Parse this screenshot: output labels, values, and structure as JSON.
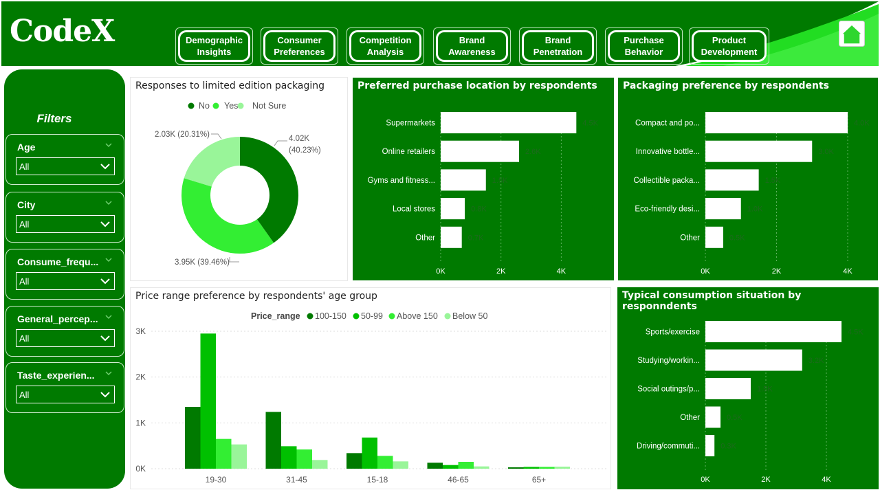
{
  "app": {
    "logo": "CodeX"
  },
  "nav": {
    "buttons": [
      {
        "line1": "Demographic",
        "line2": "Insights"
      },
      {
        "line1": "Consumer",
        "line2": "Preferences"
      },
      {
        "line1": "Competition",
        "line2": "Analysis"
      },
      {
        "line1": "Brand",
        "line2": "Awareness"
      },
      {
        "line1": "Brand",
        "line2": "Penetration"
      },
      {
        "line1": "Purchase",
        "line2": "Behavior"
      },
      {
        "line1": "Product",
        "line2": "Development"
      }
    ]
  },
  "sidebar": {
    "title": "Filters",
    "filters": [
      {
        "label": "Age",
        "value": "All"
      },
      {
        "label": "City",
        "value": "All"
      },
      {
        "label": "Consume_frequ...",
        "value": "All"
      },
      {
        "label": "General_percep...",
        "value": "All"
      },
      {
        "label": "Taste_experien...",
        "value": "All"
      }
    ]
  },
  "colors": {
    "dark_green": "#007a00",
    "green": "#33ee33",
    "mid_green": "#00c000",
    "light_green": "#99f599"
  },
  "chart_data": [
    {
      "id": "limited-edition",
      "type": "pie",
      "title": "Responses to limited edition packaging",
      "legend": "top",
      "slices": [
        {
          "name": "No",
          "value": 4.02,
          "label": "4.02K",
          "pct": "(40.23%)",
          "color": "#007a00"
        },
        {
          "name": "Yes",
          "value": 3.95,
          "label": "3.95K (39.46%)",
          "color": "#33ee33"
        },
        {
          "name": "Not Sure",
          "value": 2.03,
          "label": "2.03K (20.31%)",
          "color": "#99f599"
        }
      ]
    },
    {
      "id": "purchase-location",
      "type": "bar",
      "orientation": "horizontal",
      "title": "Preferred purchase location by respondents",
      "categories": [
        "Supermarkets",
        "Online retailers",
        "Gyms and fitness...",
        "Local stores",
        "Other"
      ],
      "values": [
        4.5,
        2.6,
        1.5,
        0.8,
        0.7
      ],
      "labels": [
        "4.5K",
        "2.6K",
        "1.5K",
        "0.8K",
        "0.7K"
      ],
      "xticks": [
        "0K",
        "2K",
        "4K"
      ],
      "xlim": [
        0,
        5.2
      ]
    },
    {
      "id": "packaging-preference",
      "type": "bar",
      "orientation": "horizontal",
      "title": "Packaging preference by respondents",
      "categories": [
        "Compact and po...",
        "Innovative bottle...",
        "Collectible packa...",
        "Eco-friendly desi...",
        "Other"
      ],
      "values": [
        4.0,
        3.0,
        1.5,
        1.0,
        0.5
      ],
      "labels": [
        "4.0K",
        "3.0K",
        "1.5K",
        "1.0K",
        "0.5K"
      ],
      "xticks": [
        "0K",
        "2K",
        "4K"
      ],
      "xlim": [
        0,
        4.0
      ]
    },
    {
      "id": "price-range-age",
      "type": "bar",
      "orientation": "vertical",
      "title": "Price range preference by respondents' age group",
      "legend_title": "Price_range",
      "legend": "top",
      "categories": [
        "19-30",
        "31-45",
        "15-18",
        "46-65",
        "65+"
      ],
      "yticks": [
        "0K",
        "1K",
        "2K",
        "3K"
      ],
      "ylim": [
        0,
        3000
      ],
      "series": [
        {
          "name": "100-150",
          "color": "#007a00",
          "values": [
            1350,
            1240,
            340,
            130,
            30
          ]
        },
        {
          "name": "50-99",
          "color": "#00c000",
          "values": [
            2950,
            490,
            680,
            80,
            40
          ]
        },
        {
          "name": "Above 150",
          "color": "#33ee33",
          "values": [
            650,
            420,
            280,
            150,
            40
          ]
        },
        {
          "name": "Below 50",
          "color": "#99f599",
          "values": [
            530,
            190,
            160,
            50,
            45
          ]
        }
      ]
    },
    {
      "id": "consumption-situation",
      "type": "bar",
      "orientation": "horizontal",
      "title": "Typical consumption situation by responndents",
      "categories": [
        "Sports/exercise",
        "Studying/workin...",
        "Social outings/p...",
        "Other",
        "Driving/commuti..."
      ],
      "values": [
        4.5,
        3.2,
        1.5,
        0.5,
        0.3
      ],
      "labels": [
        "4.5K",
        "3.2K",
        "1.5K",
        "0.5K",
        "0.3K"
      ],
      "xticks": [
        "0K",
        "2K",
        "4K"
      ],
      "xlim": [
        0,
        4.5
      ]
    }
  ]
}
